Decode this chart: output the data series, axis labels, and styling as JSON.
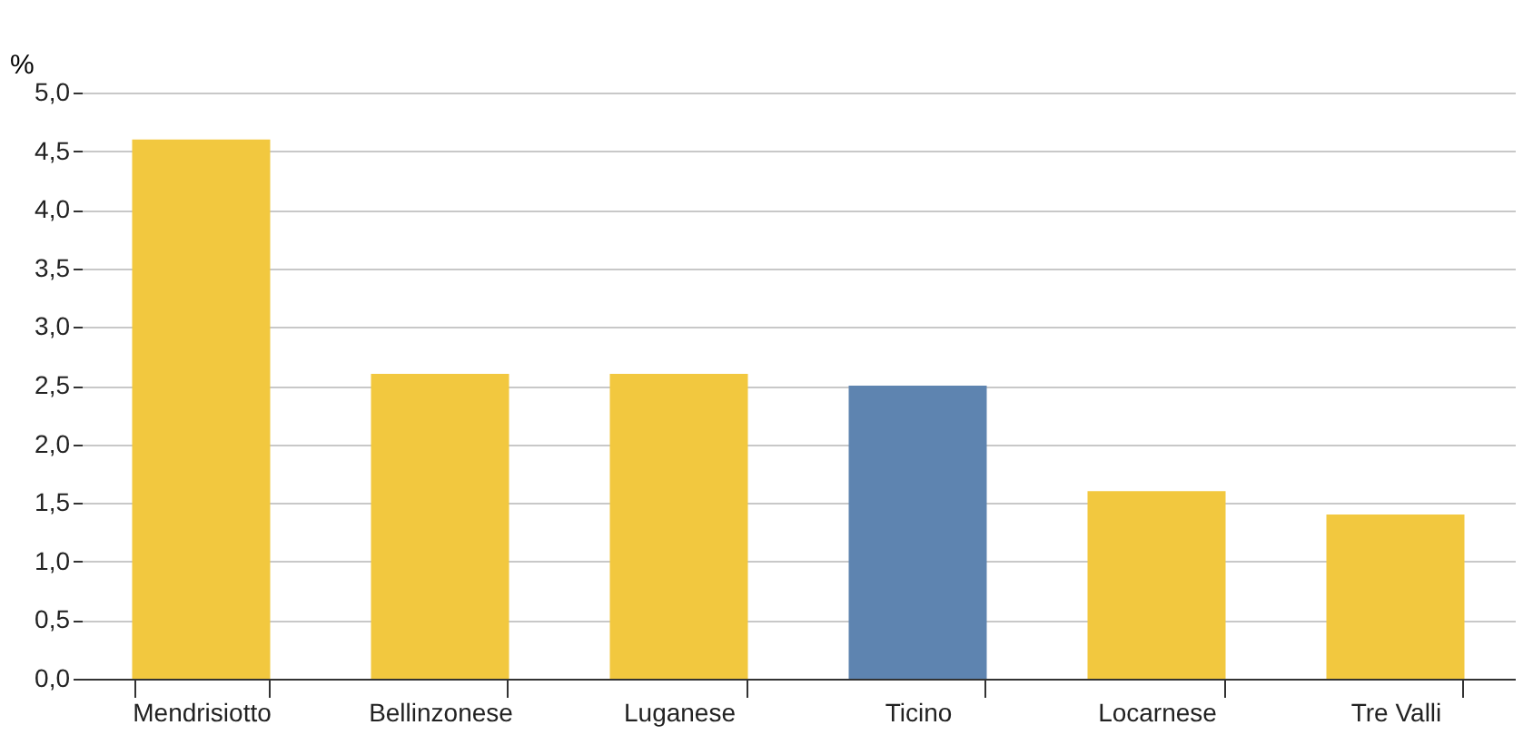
{
  "chart_data": {
    "type": "bar",
    "ylabel": "%",
    "categories": [
      "Mendrisiotto",
      "Bellinzonese",
      "Luganese",
      "Ticino",
      "Locarnese",
      "Tre Valli"
    ],
    "values": [
      4.6,
      2.6,
      2.6,
      2.5,
      1.6,
      1.4
    ],
    "colors": [
      "#f2c83f",
      "#f2c83f",
      "#f2c83f",
      "#5e84b0",
      "#f2c83f",
      "#f2c83f"
    ],
    "ylim": [
      0,
      5
    ],
    "yticks": [
      {
        "value": 0,
        "label": "0,0"
      },
      {
        "value": 0.5,
        "label": "0,5"
      },
      {
        "value": 1,
        "label": "1,0"
      },
      {
        "value": 1.5,
        "label": "1,5"
      },
      {
        "value": 2,
        "label": "2,0"
      },
      {
        "value": 2.5,
        "label": "2,5"
      },
      {
        "value": 3,
        "label": "3,0"
      },
      {
        "value": 3.5,
        "label": "3,5"
      },
      {
        "value": 4,
        "label": "4,0"
      },
      {
        "value": 4.5,
        "label": "4,5"
      },
      {
        "value": 5,
        "label": "5,0"
      }
    ],
    "grid": "y"
  }
}
